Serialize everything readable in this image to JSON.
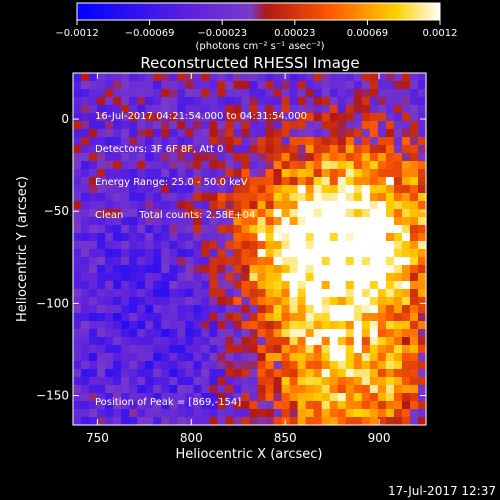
{
  "chart_data": {
    "type": "heatmap",
    "title": "Reconstructed RHESSI Image",
    "xlabel": "Heliocentric X (arcsec)",
    "ylabel": "Heliocentric Y (arcsec)",
    "xlim": [
      737,
      925
    ],
    "ylim": [
      -166,
      25
    ],
    "xticks": [
      750,
      800,
      850,
      900
    ],
    "yticks": [
      0,
      -50,
      -100,
      -150
    ],
    "xtick_labels": [
      "750",
      "800",
      "850",
      "900"
    ],
    "ytick_labels": [
      "0",
      "−50",
      "−100",
      "−150"
    ],
    "colorbar": {
      "range": [
        -0.0012,
        0.0012
      ],
      "tick_labels": [
        "−0.0012",
        "−0.00069",
        "−0.00023",
        "0.00023",
        "0.00069",
        "0.0012"
      ],
      "unit_label": "(photons cm⁻² s⁻¹ asec⁻²)",
      "colormap": [
        "#0000ff",
        "#6a2fd0",
        "#7f3fc0",
        "#c01010",
        "#ff6000",
        "#ffcc00",
        "#ffffff"
      ]
    },
    "info_lines": [
      "16-Jul-2017 04:21:54.000 to 04:31:54.000",
      "Detectors: 3F 6F 8F, Att 0",
      "Energy Range: 25.0 - 50.0 keV",
      "Clean     Total counts: 2.58E+04"
    ],
    "peak_label": "Position of Peak = [869,-154]",
    "peak": [
      869,
      -154
    ],
    "sources": [
      {
        "x": 860,
        "y": -70
      },
      {
        "x": 895,
        "y": -60
      },
      {
        "x": 880,
        "y": -140
      }
    ]
  },
  "timestamp": "17-Jul-2017 12:37"
}
